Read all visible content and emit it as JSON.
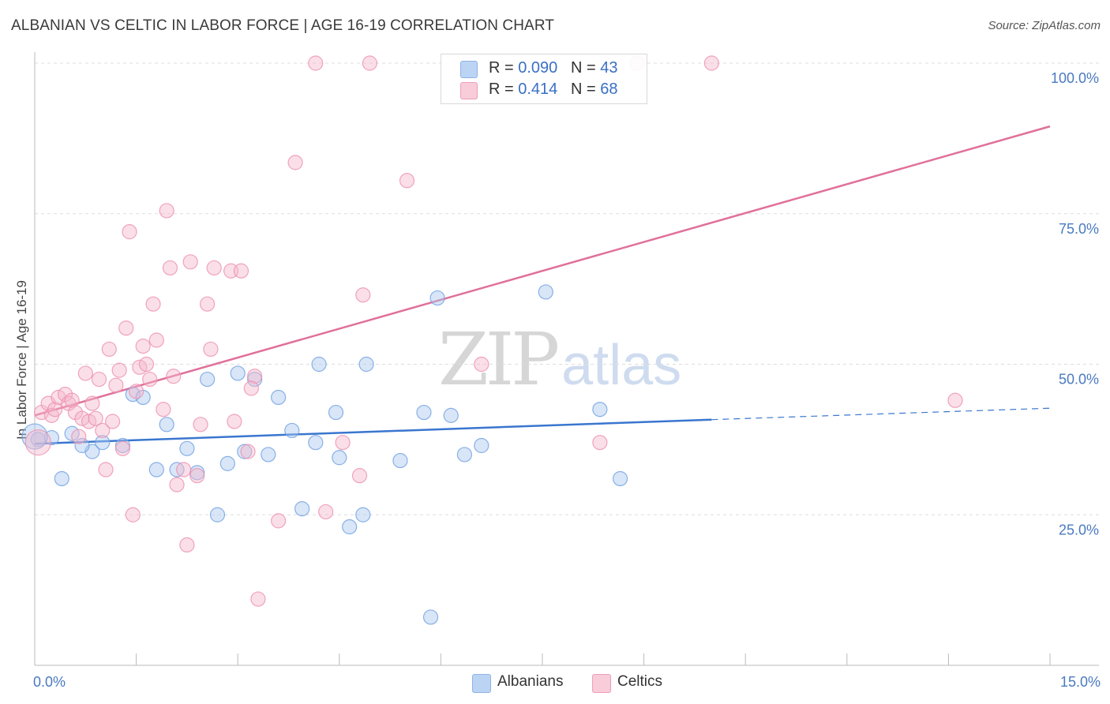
{
  "title": "ALBANIAN VS CELTIC IN LABOR FORCE | AGE 16-19 CORRELATION CHART",
  "source": "Source: ZipAtlas.com",
  "watermark": {
    "zip": "ZIP",
    "atlas": "atlas"
  },
  "legend_top": [
    {
      "r_label": "R =",
      "r_value": "0.090",
      "n_label": "N =",
      "n_value": "43",
      "color": "#a9c8f0"
    },
    {
      "r_label": "R =",
      "r_value": "0.414",
      "n_label": "N =",
      "n_value": "68",
      "color": "#f5b8cb"
    }
  ],
  "legend_bottom": [
    {
      "label": "Albanians",
      "color": "#a9c8f0"
    },
    {
      "label": "Celtics",
      "color": "#f5b8cb"
    }
  ],
  "chart_data": {
    "type": "scatter",
    "title": "ALBANIAN VS CELTIC IN LABOR FORCE | AGE 16-19 CORRELATION CHART",
    "xlabel": "",
    "ylabel": "In Labor Force | Age 16-19",
    "xlim": [
      0,
      15
    ],
    "ylim": [
      0,
      100
    ],
    "x_tick_labels": [
      "0.0%",
      "15.0%"
    ],
    "y_ticks": [
      25,
      50,
      75,
      100
    ],
    "y_tick_labels": [
      "25.0%",
      "50.0%",
      "75.0%",
      "100.0%"
    ],
    "grid": true,
    "legend_position": "top-center",
    "series": [
      {
        "name": "Albanians",
        "color": "#6f9fe0",
        "fill": "#a9c8f0",
        "r": 0.09,
        "n": 43,
        "trend": {
          "x0": 0,
          "y0": 36.8,
          "x1": 10.0,
          "y1": 40.8,
          "dash_to_x": 15,
          "dash_to_y": 42.7,
          "color": "#3a76cf"
        },
        "points": [
          [
            0.05,
            37.5
          ],
          [
            0.25,
            37.8
          ],
          [
            0.4,
            31.0
          ],
          [
            0.55,
            38.5
          ],
          [
            0.85,
            35.5
          ],
          [
            0.7,
            36.5
          ],
          [
            1.0,
            37.0
          ],
          [
            1.3,
            36.5
          ],
          [
            1.45,
            45.0
          ],
          [
            1.6,
            44.5
          ],
          [
            1.8,
            32.5
          ],
          [
            1.95,
            40.0
          ],
          [
            2.1,
            32.5
          ],
          [
            2.25,
            36.0
          ],
          [
            2.4,
            32.0
          ],
          [
            2.55,
            47.5
          ],
          [
            2.7,
            25.0
          ],
          [
            2.85,
            33.5
          ],
          [
            3.0,
            48.5
          ],
          [
            3.1,
            35.5
          ],
          [
            3.25,
            47.5
          ],
          [
            3.45,
            35.0
          ],
          [
            3.6,
            44.5
          ],
          [
            3.8,
            39.0
          ],
          [
            3.95,
            26.0
          ],
          [
            4.15,
            37.0
          ],
          [
            4.2,
            50.0
          ],
          [
            4.45,
            42.0
          ],
          [
            4.5,
            34.5
          ],
          [
            4.65,
            23.0
          ],
          [
            4.85,
            25.0
          ],
          [
            4.9,
            50.0
          ],
          [
            5.4,
            34.0
          ],
          [
            5.75,
            42.0
          ],
          [
            5.85,
            8.0
          ],
          [
            5.95,
            61.0
          ],
          [
            6.15,
            41.5
          ],
          [
            6.35,
            35.0
          ],
          [
            6.6,
            36.5
          ],
          [
            7.55,
            62.0
          ],
          [
            8.35,
            42.5
          ],
          [
            8.65,
            31.0
          ],
          [
            0.0,
            38.0
          ]
        ]
      },
      {
        "name": "Celtics",
        "color": "#ee8fae",
        "fill": "#f5b8cb",
        "r": 0.414,
        "n": 68,
        "trend": {
          "x0": 0,
          "y0": 41.5,
          "x1": 15,
          "y1": 89.5,
          "color": "#e0709a"
        },
        "points": [
          [
            0.05,
            37.0
          ],
          [
            0.1,
            42.0
          ],
          [
            0.2,
            43.5
          ],
          [
            0.25,
            41.5
          ],
          [
            0.3,
            42.5
          ],
          [
            0.35,
            44.5
          ],
          [
            0.45,
            45.0
          ],
          [
            0.5,
            43.5
          ],
          [
            0.55,
            44.0
          ],
          [
            0.6,
            42.0
          ],
          [
            0.65,
            38.0
          ],
          [
            0.7,
            41.0
          ],
          [
            0.75,
            48.5
          ],
          [
            0.8,
            40.5
          ],
          [
            0.85,
            43.5
          ],
          [
            0.9,
            41.0
          ],
          [
            0.95,
            47.5
          ],
          [
            1.0,
            39.0
          ],
          [
            1.05,
            32.5
          ],
          [
            1.1,
            52.5
          ],
          [
            1.15,
            40.5
          ],
          [
            1.2,
            46.5
          ],
          [
            1.25,
            49.0
          ],
          [
            1.3,
            36.0
          ],
          [
            1.35,
            56.0
          ],
          [
            1.4,
            72.0
          ],
          [
            1.45,
            25.0
          ],
          [
            1.5,
            45.5
          ],
          [
            1.55,
            49.5
          ],
          [
            1.6,
            53.0
          ],
          [
            1.65,
            50.0
          ],
          [
            1.7,
            47.5
          ],
          [
            1.75,
            60.0
          ],
          [
            1.8,
            54.0
          ],
          [
            1.9,
            42.5
          ],
          [
            1.95,
            75.5
          ],
          [
            2.0,
            66.0
          ],
          [
            2.05,
            48.0
          ],
          [
            2.1,
            30.0
          ],
          [
            2.2,
            32.5
          ],
          [
            2.25,
            20.0
          ],
          [
            2.3,
            67.0
          ],
          [
            2.4,
            31.5
          ],
          [
            2.45,
            40.0
          ],
          [
            2.55,
            60.0
          ],
          [
            2.6,
            52.5
          ],
          [
            2.65,
            66.0
          ],
          [
            2.9,
            65.5
          ],
          [
            2.95,
            40.5
          ],
          [
            3.05,
            65.5
          ],
          [
            3.15,
            35.5
          ],
          [
            3.25,
            48.0
          ],
          [
            3.3,
            11.0
          ],
          [
            3.6,
            24.0
          ],
          [
            3.85,
            83.5
          ],
          [
            4.15,
            100.0
          ],
          [
            4.55,
            37.0
          ],
          [
            4.8,
            31.5
          ],
          [
            4.85,
            61.5
          ],
          [
            4.95,
            100.0
          ],
          [
            5.5,
            80.5
          ],
          [
            6.6,
            50.0
          ],
          [
            8.35,
            37.0
          ],
          [
            8.9,
            100.0
          ],
          [
            10.0,
            100.0
          ],
          [
            13.6,
            44.0
          ],
          [
            4.3,
            25.5
          ],
          [
            3.2,
            46.0
          ]
        ]
      }
    ]
  }
}
